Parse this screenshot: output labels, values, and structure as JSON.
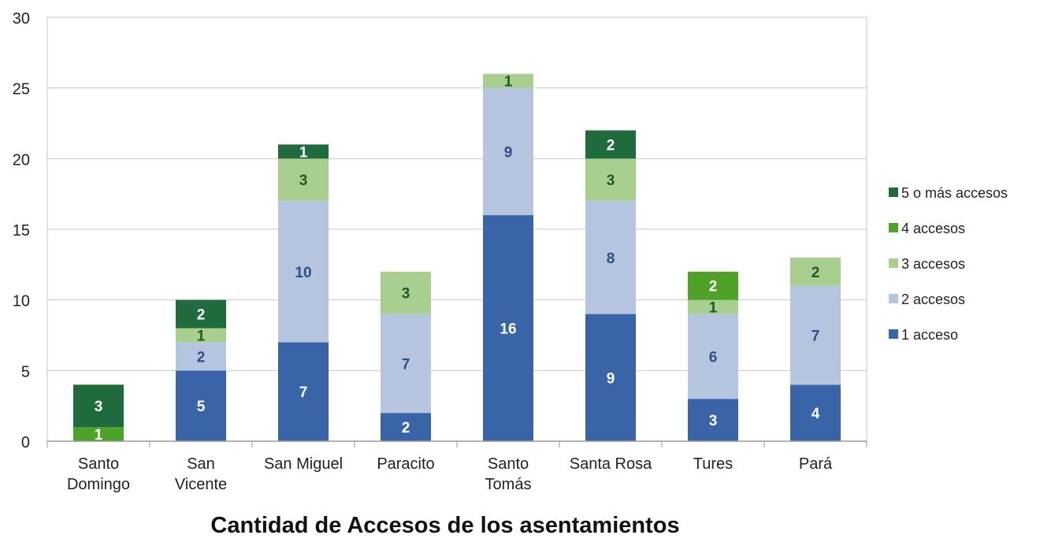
{
  "chart_data": {
    "type": "bar",
    "stacked": true,
    "title": "Cantidad de Accesos de los asentamientos",
    "xlabel": "",
    "ylabel": "",
    "ylim": [
      0,
      30
    ],
    "yticks": [
      0,
      5,
      10,
      15,
      20,
      25,
      30
    ],
    "grid": true,
    "legend_position": "right",
    "categories": [
      [
        "Santo",
        "Domingo"
      ],
      [
        "San",
        "Vicente"
      ],
      [
        "San Miguel"
      ],
      [
        "Paracito"
      ],
      [
        "Santo",
        "Tomás"
      ],
      [
        "Santa Rosa"
      ],
      [
        "Tures"
      ],
      [
        "Pará"
      ]
    ],
    "series": [
      {
        "name": "1 acceso",
        "color": "#3a64a8",
        "label_color": "#ffffff",
        "values": [
          0,
          5,
          7,
          2,
          16,
          9,
          3,
          4
        ]
      },
      {
        "name": "2 accesos",
        "color": "#b5c5df",
        "label_color": "#2d4f86",
        "values": [
          0,
          2,
          10,
          7,
          9,
          8,
          6,
          7
        ]
      },
      {
        "name": "3 accesos",
        "color": "#a9cf8e",
        "label_color": "#1e5a28",
        "values": [
          0,
          1,
          3,
          3,
          1,
          3,
          1,
          2
        ]
      },
      {
        "name": "4 accesos",
        "color": "#4ea227",
        "label_color": "#ffffff",
        "values": [
          1,
          0,
          0,
          0,
          0,
          0,
          2,
          0
        ]
      },
      {
        "name": "5 o más accesos",
        "color": "#1f6b3d",
        "label_color": "#ffffff",
        "values": [
          3,
          2,
          1,
          0,
          0,
          2,
          0,
          0
        ]
      }
    ],
    "legend_order": [
      4,
      3,
      2,
      1,
      0
    ]
  }
}
